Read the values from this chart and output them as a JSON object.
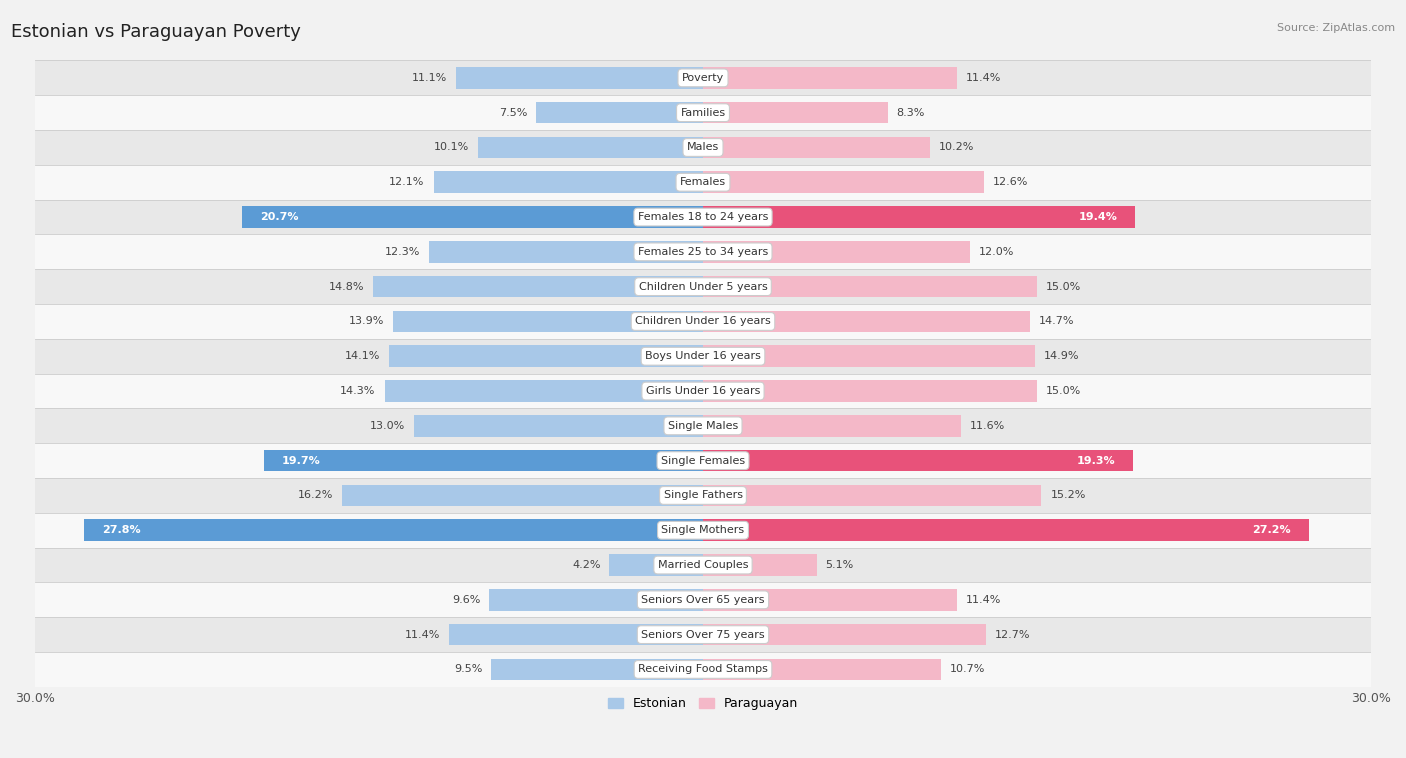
{
  "title": "Estonian vs Paraguayan Poverty",
  "source": "Source: ZipAtlas.com",
  "categories": [
    "Poverty",
    "Families",
    "Males",
    "Females",
    "Females 18 to 24 years",
    "Females 25 to 34 years",
    "Children Under 5 years",
    "Children Under 16 years",
    "Boys Under 16 years",
    "Girls Under 16 years",
    "Single Males",
    "Single Females",
    "Single Fathers",
    "Single Mothers",
    "Married Couples",
    "Seniors Over 65 years",
    "Seniors Over 75 years",
    "Receiving Food Stamps"
  ],
  "estonian": [
    11.1,
    7.5,
    10.1,
    12.1,
    20.7,
    12.3,
    14.8,
    13.9,
    14.1,
    14.3,
    13.0,
    19.7,
    16.2,
    27.8,
    4.2,
    9.6,
    11.4,
    9.5
  ],
  "paraguayan": [
    11.4,
    8.3,
    10.2,
    12.6,
    19.4,
    12.0,
    15.0,
    14.7,
    14.9,
    15.0,
    11.6,
    19.3,
    15.2,
    27.2,
    5.1,
    11.4,
    12.7,
    10.7
  ],
  "estonian_color_normal": "#a8c8e8",
  "estonian_color_highlight": "#5b9bd5",
  "paraguayan_color_normal": "#f4b8c8",
  "paraguayan_color_highlight": "#e8527a",
  "highlight_threshold": 18.0,
  "max_val": 30.0,
  "background_color": "#f2f2f2",
  "row_bg_even": "#e8e8e8",
  "row_bg_odd": "#f8f8f8",
  "bar_height": 0.62,
  "legend_labels": [
    "Estonian",
    "Paraguayan"
  ]
}
